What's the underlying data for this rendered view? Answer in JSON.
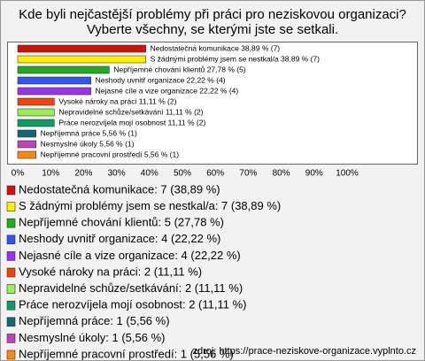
{
  "chart_data": {
    "type": "hbar",
    "title": "Kde byli nejčastější problémy při práci pro neziskovou organizaci?",
    "subtitle": "Vyberte všechny, se kterými jste se setkali.",
    "categories": [
      "Nedostatečná komunikace",
      "S žádnými problémy jsem se nestkal/a",
      "Nepříjemné chování klientů",
      "Neshody uvnitř organizace",
      "Nejasné cíle a vize organizace",
      "Vysoké nároky na práci",
      "Nepravidelné schůze/setkávání",
      "Práce nerozvíjela mojí osobnost",
      "Nepříjemná práce",
      "Nesmyslné úkoly",
      "Nepříjemné pracovní prostředí"
    ],
    "values": [
      38.89,
      38.89,
      27.78,
      22.22,
      22.22,
      11.11,
      11.11,
      11.11,
      5.56,
      5.56,
      5.56
    ],
    "value_labels": [
      "Nedostatečná komunikace 38,89 % (7)",
      "S žádnými problémy jsem se nestkal/a 38,89 % (7)",
      "Nepříjemné chování klientů 27,78 % (5)",
      "Neshody uvnitř organizace 22,22 % (4)",
      "Nejasné cíle a vize organizace 22,22 % (4)",
      "Vysoké nároky na práci 11,11 % (2)",
      "Nepravidelné schůze/setkávání 11,11 % (2)",
      "Práce nerozvíjela mojí osobnost 11,11 % (2)",
      "Nepříjemná práce 5,56 % (1)",
      "Nesmyslné úkoly 5,56 % (1)",
      "Nepříjemné pracovní prostředí 5,56 % (1)"
    ],
    "legend_labels": [
      "Nedostatečná komunikace: 7 (38,89 %)",
      "S žádnými problémy jsem se nestkal/a: 7 (38,89 %)",
      "Nepříjemné chování klientů: 5 (27,78 %)",
      "Neshody uvnitř organizace: 4 (22,22 %)",
      "Nejasné cíle a vize organizace: 4 (22,22 %)",
      "Vysoké nároky na práci: 2 (11,11 %)",
      "Nepravidelné schůze/setkávání: 2 (11,11 %)",
      "Práce nerozvíjela mojí osobnost: 2 (11,11 %)",
      "Nepříjemná práce: 1 (5,56 %)",
      "Nesmyslné úkoly: 1 (5,56 %)",
      "Nepříjemné pracovní prostředí: 1 (5,56 %)"
    ],
    "colors": [
      "#cc1111",
      "#ffee00",
      "#22aa22",
      "#3355ee",
      "#9933ee",
      "#ee4411",
      "#99ee55",
      "#119966",
      "#116677",
      "#bb44bb",
      "#ff8811"
    ],
    "xlim": [
      0,
      100
    ],
    "xticks": [
      {
        "value": 0,
        "label": "0%"
      },
      {
        "value": 10,
        "label": "10%"
      },
      {
        "value": 20,
        "label": "20%"
      },
      {
        "value": 30,
        "label": "30%"
      },
      {
        "value": 40,
        "label": "40%"
      },
      {
        "value": 50,
        "label": "50%"
      },
      {
        "value": 60,
        "label": "60%"
      },
      {
        "value": 70,
        "label": "70%"
      },
      {
        "value": 80,
        "label": "80%"
      },
      {
        "value": 90,
        "label": "90%"
      },
      {
        "value": 100,
        "label": "100%"
      }
    ],
    "source": "zdroj: https://prace-neziskove-organizace.vyplnto.cz"
  }
}
